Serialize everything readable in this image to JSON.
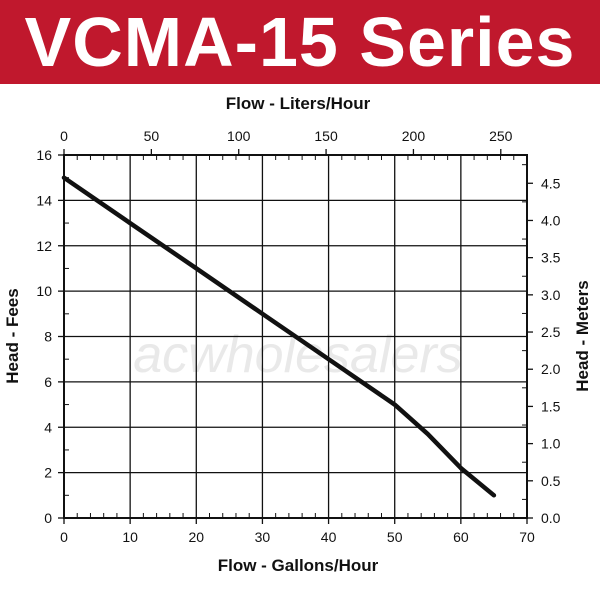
{
  "header": {
    "title": "VCMA-15 Series",
    "bg_color": "#c0182d",
    "text_color": "#ffffff"
  },
  "watermark": {
    "text": "acwholesalers"
  },
  "chart_data": {
    "type": "line",
    "xlabel_bottom": "Flow - Gallons/Hour",
    "xlabel_top": "Flow - Liters/Hour",
    "ylabel_left": "Head - Fees",
    "ylabel_right": "Head - Meters",
    "x_bottom_ticks": [
      "0",
      "10",
      "20",
      "30",
      "40",
      "50",
      "60",
      "70"
    ],
    "x_top_ticks": [
      "0",
      "50",
      "100",
      "150",
      "200",
      "250"
    ],
    "y_left_ticks": [
      "0",
      "2",
      "4",
      "6",
      "8",
      "10",
      "12",
      "14",
      "16"
    ],
    "y_right_ticks": [
      "0.0",
      "0.5",
      "1.0",
      "1.5",
      "2.0",
      "2.5",
      "3.0",
      "3.5",
      "4.0",
      "4.5"
    ],
    "xlim": [
      0,
      70
    ],
    "ylim": [
      0,
      16
    ],
    "x_top_lim": [
      0,
      265
    ],
    "y_right_lim": [
      0,
      4.88
    ],
    "grid": true,
    "series": [
      {
        "color": "#111111",
        "x": [
          0,
          10,
          20,
          30,
          40,
          50,
          55,
          60,
          65
        ],
        "y": [
          15,
          13,
          11,
          9,
          7,
          5,
          3.7,
          2.2,
          1
        ]
      }
    ]
  }
}
